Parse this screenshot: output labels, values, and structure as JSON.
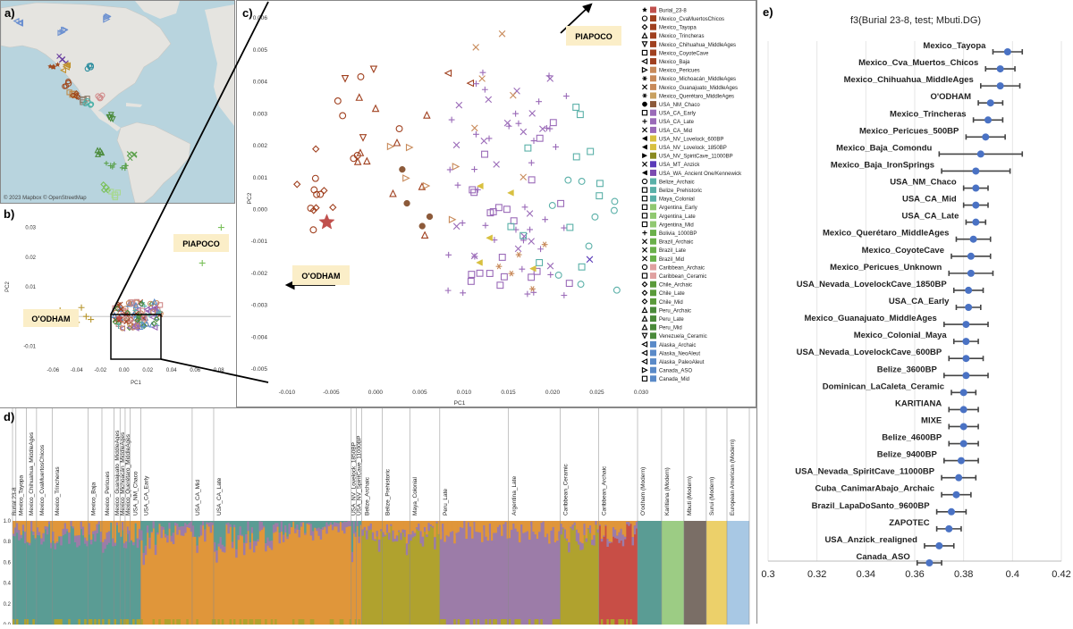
{
  "panels": {
    "a": "a)",
    "b": "b)",
    "c": "c)",
    "d": "d)",
    "e": "e)"
  },
  "map": {
    "attribution": "© 2023 Mapbox © OpenStreetMap",
    "colors": {
      "water": "#b8d4de",
      "land": "#e5e4e0"
    },
    "markers": [
      {
        "label": "Alaska",
        "lon": -152,
        "lat": 60,
        "color": "#6a8fd0",
        "shape": "tri-left"
      },
      {
        "label": "Canada",
        "lon": -110,
        "lat": 56,
        "color": "#6a8fd0",
        "shape": "tri-right"
      },
      {
        "label": "Canada",
        "lon": -70,
        "lat": 62,
        "color": "#6a8fd0",
        "shape": "tri-right"
      },
      {
        "label": "USA",
        "lon": -112,
        "lat": 40,
        "color": "#6a3fa0",
        "shape": "x"
      },
      {
        "label": "USA",
        "lon": -120,
        "lat": 36,
        "color": "#a04a1f",
        "shape": "star"
      },
      {
        "label": "USA",
        "lon": -108,
        "lat": 36,
        "color": "#c0902a",
        "shape": "tri-left"
      },
      {
        "label": "USA",
        "lon": -85,
        "lat": 36,
        "color": "#2a8c9e",
        "shape": "circle"
      },
      {
        "label": "Mexico",
        "lon": -106,
        "lat": 27,
        "color": "#a04a1f",
        "shape": "circle"
      },
      {
        "label": "Mexico",
        "lon": -102,
        "lat": 21,
        "color": "#c08a4a",
        "shape": "square"
      },
      {
        "label": "Mexico",
        "lon": -98,
        "lat": 20,
        "color": "#a04a1f",
        "shape": "diamond"
      },
      {
        "label": "Mexico",
        "lon": -92,
        "lat": 18,
        "color": "#8c7b6a",
        "shape": "square"
      },
      {
        "label": "Caribbean",
        "lon": -76,
        "lat": 19,
        "color": "#d08a8a",
        "shape": "circle"
      },
      {
        "label": "Belize",
        "lon": -88,
        "lat": 17,
        "color": "#4ab0a8",
        "shape": "circle"
      },
      {
        "label": "Venezuela",
        "lon": -66,
        "lat": 8,
        "color": "#4a8a3a",
        "shape": "tri-down"
      },
      {
        "label": "Peru",
        "lon": -76,
        "lat": -10,
        "color": "#4a8a3a",
        "shape": "triangle"
      },
      {
        "label": "Brazil",
        "lon": -44,
        "lat": -12,
        "color": "#5aa04a",
        "shape": "x"
      },
      {
        "label": "Brazil",
        "lon": -52,
        "lat": -18,
        "color": "#5aa04a",
        "shape": "plus"
      },
      {
        "label": "Bolivia",
        "lon": -66,
        "lat": -18,
        "color": "#5aa04a",
        "shape": "plus"
      },
      {
        "label": "Chile",
        "lon": -70,
        "lat": -30,
        "color": "#7ac05a",
        "shape": "diamond"
      },
      {
        "label": "Argentina",
        "lon": -62,
        "lat": -34,
        "color": "#a8d890",
        "shape": "square"
      }
    ]
  },
  "pca_small": {
    "xlabel": "PC1",
    "ylabel": "PC2",
    "xticks": [
      "-0.06",
      "-0.04",
      "-0.02",
      "0.00",
      "0.02",
      "0.04",
      "0.06",
      "0.08"
    ],
    "yticks": [
      "0.03",
      "0.02",
      "0.01",
      "0.00",
      "-0.01"
    ],
    "label_odham": "O'ODHAM",
    "label_piapoco": "PIAPOCO"
  },
  "pca_large": {
    "xlabel": "PC1",
    "ylabel": "PC2",
    "xticks": [
      "-0.010",
      "-0.005",
      "0.000",
      "0.005",
      "0.010",
      "0.015",
      "0.020",
      "0.025",
      "0.030"
    ],
    "yticks": [
      "0.006",
      "0.005",
      "0.004",
      "0.003",
      "0.002",
      "0.001",
      "0.000",
      "-0.001",
      "-0.002",
      "-0.003",
      "-0.004",
      "-0.005"
    ],
    "label_odham": "O'ODHAM",
    "label_piapoco": "PIAPOCO"
  },
  "legend": [
    {
      "shape": "star",
      "color": "#c0504d",
      "label": "Burial_23-8"
    },
    {
      "shape": "circle",
      "color": "#a0401f",
      "label": "Mexico_CvaMuertosChicos"
    },
    {
      "shape": "diamond",
      "color": "#a0401f",
      "label": "Mexico_Tayopa"
    },
    {
      "shape": "triangle",
      "color": "#a0401f",
      "label": "Mexico_Trincheras"
    },
    {
      "shape": "tri-down",
      "color": "#a0401f",
      "label": "Mexico_Chihuahua_MiddleAges"
    },
    {
      "shape": "square",
      "color": "#a0401f",
      "label": "Mexico_CoyoteCave"
    },
    {
      "shape": "tri-left",
      "color": "#a0401f",
      "label": "Mexico_Baja"
    },
    {
      "shape": "tri-right",
      "color": "#c88a5a",
      "label": "Mexico_Pericues"
    },
    {
      "shape": "star6",
      "color": "#c88a5a",
      "label": "Mexico_Michoacán_MiddleAges"
    },
    {
      "shape": "x",
      "color": "#c88a5a",
      "label": "Mexico_Guanajuato_MiddleAges"
    },
    {
      "shape": "star6",
      "color": "#c8a060",
      "label": "Mexico_Querétaro_MiddleAges"
    },
    {
      "shape": "dot",
      "color": "#8c5a3a",
      "label": "USA_NM_Chaco"
    },
    {
      "shape": "square",
      "color": "#9a6ab8",
      "label": "USA_CA_Early"
    },
    {
      "shape": "plus",
      "color": "#9a6ab8",
      "label": "USA_CA_Late"
    },
    {
      "shape": "x",
      "color": "#9a6ab8",
      "label": "USA_CA_Mid"
    },
    {
      "shape": "tri-left-fill",
      "color": "#d8c040",
      "label": "USA_NV_Lovelock_600BP"
    },
    {
      "shape": "tri-left-fill",
      "color": "#d8c040",
      "label": "USA_NV_Lovelock_1850BP"
    },
    {
      "shape": "tri-right-fill",
      "color": "#8a8a20",
      "label": "USA_NV_SpiritCave_11000BP"
    },
    {
      "shape": "x",
      "color": "#5a3ab8",
      "label": "USA_MT_Anzick"
    },
    {
      "shape": "tri-left-fill",
      "color": "#7a4ab0",
      "label": "USA_WA_Ancient One/Kennewick"
    },
    {
      "shape": "circle",
      "color": "#5ab0a8",
      "label": "Belize_Archaic"
    },
    {
      "shape": "square",
      "color": "#5ab0a8",
      "label": "Belize_Prehistoric"
    },
    {
      "shape": "square",
      "color": "#5ab0a8",
      "label": "Maya_Colonial"
    },
    {
      "shape": "square",
      "color": "#90c870",
      "label": "Argentina_Early"
    },
    {
      "shape": "square",
      "color": "#90c870",
      "label": "Argentina_Late"
    },
    {
      "shape": "square",
      "color": "#90c870",
      "label": "Argentina_Mid"
    },
    {
      "shape": "plus",
      "color": "#6ab04a",
      "label": "Bolivia_1000BP"
    },
    {
      "shape": "x",
      "color": "#6ab04a",
      "label": "Brazil_Archaic"
    },
    {
      "shape": "x",
      "color": "#6ab04a",
      "label": "Brazil_Late"
    },
    {
      "shape": "x",
      "color": "#6ab04a",
      "label": "Brazil_Mid"
    },
    {
      "shape": "circle",
      "color": "#e0a0a0",
      "label": "Caribbean_Archaic"
    },
    {
      "shape": "square",
      "color": "#e0a0a0",
      "label": "Caribbean_Ceramic"
    },
    {
      "shape": "diamond",
      "color": "#5a9a3a",
      "label": "Chile_Archaic"
    },
    {
      "shape": "diamond",
      "color": "#5a9a3a",
      "label": "Chile_Late"
    },
    {
      "shape": "diamond",
      "color": "#5a9a3a",
      "label": "Chile_Mid"
    },
    {
      "shape": "triangle",
      "color": "#4a8a3a",
      "label": "Peru_Archaic"
    },
    {
      "shape": "triangle",
      "color": "#4a8a3a",
      "label": "Peru_Late"
    },
    {
      "shape": "triangle",
      "color": "#4a8a3a",
      "label": "Peru_Mid"
    },
    {
      "shape": "tri-down",
      "color": "#4a8a3a",
      "label": "Venezuela_Ceramic"
    },
    {
      "shape": "tri-left",
      "color": "#5a8ac8",
      "label": "Alaska_Archaic"
    },
    {
      "shape": "tri-left",
      "color": "#5a8ac8",
      "label": "Alaska_NeoAleut"
    },
    {
      "shape": "tri-left",
      "color": "#5a8ac8",
      "label": "Alaska_PaleoAleut"
    },
    {
      "shape": "tri-right",
      "color": "#5a8ac8",
      "label": "Canada_ASO"
    },
    {
      "shape": "square",
      "color": "#5a8ac8",
      "label": "Canada_Mid"
    }
  ],
  "admixture": {
    "ytick_labels": [
      "1.0",
      "0.8",
      "0.6",
      "0.4",
      "0.2",
      "0.0"
    ],
    "colors": {
      "orange": "#e0963a",
      "teal": "#5a9c94",
      "purple": "#9c7ca8",
      "olive": "#b0a22e",
      "red": "#c84e46",
      "green": "#9ccc84",
      "brown": "#7a6e66",
      "yellow": "#ecd06a",
      "lightblue": "#a8c8e4"
    },
    "groups": [
      {
        "label": "Burial 23-8",
        "w": 0.4,
        "c": "teal"
      },
      {
        "label": "Mexico_Tayopa",
        "w": 1.2,
        "c": "teal"
      },
      {
        "label": "Mexico_Chihuahua_MiddleAges",
        "w": 1.2,
        "c": "teal"
      },
      {
        "label": "Mexico_CvaMuertosChicos",
        "w": 1.8,
        "c": "teal"
      },
      {
        "label": "Mexico_Trincheras",
        "w": 4.2,
        "c": "teal"
      },
      {
        "label": "Mexico_Baja",
        "w": 1.6,
        "c": "teal"
      },
      {
        "label": "Mexico_Pericues",
        "w": 1.4,
        "c": "teal"
      },
      {
        "label": "Mexico_Guanajuato_MiddleAges",
        "w": 0.7,
        "c": "teal"
      },
      {
        "label": "Mexico_Michoacán_MiddleAges",
        "w": 0.6,
        "c": "teal"
      },
      {
        "label": "Mexico_Querétaro_MiddleAges",
        "w": 0.6,
        "c": "teal"
      },
      {
        "label": "USA_NM_Chaco",
        "w": 1.2,
        "c": "teal"
      },
      {
        "label": "USA_CA_Early",
        "w": 6,
        "c": "orange"
      },
      {
        "label": "USA_CA_Mid",
        "w": 2.5,
        "c": "orange"
      },
      {
        "label": "USA_CA_Late",
        "w": 16,
        "c": "orange"
      },
      {
        "label": "USA_NV_Lovelock_1850BP",
        "w": 0.6,
        "c": "orange"
      },
      {
        "label": "USA_NV_SpiritCave_11000BP",
        "w": 0.6,
        "c": "orange"
      },
      {
        "label": "Belize_Archaic",
        "w": 2.4,
        "c": "olive"
      },
      {
        "label": "Belize_Prehistoric",
        "w": 3.2,
        "c": "olive"
      },
      {
        "label": "Maya_Colonial",
        "w": 3.5,
        "c": "olive"
      },
      {
        "label": "Peru_Late",
        "w": 8,
        "c": "purple"
      },
      {
        "label": "Argentina_Late",
        "w": 6,
        "c": "purple"
      },
      {
        "label": "Caribbean_Ceramic",
        "w": 4.5,
        "c": "olive"
      },
      {
        "label": "Caribbean_Archaic",
        "w": 4.5,
        "c": "red"
      },
      {
        "label": "O'odham (Modern)",
        "w": 2.8,
        "c": "teal"
      },
      {
        "label": "Karitiana (Modern)",
        "w": 2.6,
        "c": "green"
      },
      {
        "label": "Mbuti (Modern)",
        "w": 2.6,
        "c": "brown"
      },
      {
        "label": "Surui (Modern)",
        "w": 2.4,
        "c": "yellow"
      },
      {
        "label": "European American (Modern)",
        "w": 2.6,
        "c": "lightblue"
      }
    ]
  },
  "f3": {
    "title": "f3(Burial 23-8, test; Mbuti.DG)",
    "xlim": [
      0.3,
      0.42
    ],
    "xticks": [
      "0.3",
      "0.32",
      "0.34",
      "0.36",
      "0.38",
      "0.4",
      "0.42"
    ],
    "point_color": "#4a72c4",
    "rows": [
      {
        "label": "Mexico_Tayopa",
        "value": 0.398,
        "err": 0.006
      },
      {
        "label": "Mexico_Cva_Muertos_Chicos",
        "value": 0.395,
        "err": 0.006
      },
      {
        "label": "Mexico_Chihuahua_MiddleAges",
        "value": 0.395,
        "err": 0.008
      },
      {
        "label": "O'ODHAM",
        "value": 0.391,
        "err": 0.005
      },
      {
        "label": "Mexico_Trincheras",
        "value": 0.39,
        "err": 0.006
      },
      {
        "label": "Mexico_Pericues_500BP",
        "value": 0.389,
        "err": 0.008
      },
      {
        "label": "Mexico_Baja_Comondu",
        "value": 0.387,
        "err": 0.017
      },
      {
        "label": "Mexico_Baja_IronSprings",
        "value": 0.385,
        "err": 0.014
      },
      {
        "label": "USA_NM_Chaco",
        "value": 0.385,
        "err": 0.005
      },
      {
        "label": "USA_CA_Mid",
        "value": 0.385,
        "err": 0.005
      },
      {
        "label": "USA_CA_Late",
        "value": 0.385,
        "err": 0.004
      },
      {
        "label": "Mexico_Querétaro_MiddleAges",
        "value": 0.384,
        "err": 0.007
      },
      {
        "label": "Mexico_CoyoteCave",
        "value": 0.383,
        "err": 0.008
      },
      {
        "label": "Mexico_Pericues_Unknown",
        "value": 0.383,
        "err": 0.009
      },
      {
        "label": "USA_Nevada_LovelockCave_1850BP",
        "value": 0.382,
        "err": 0.006
      },
      {
        "label": "USA_CA_Early",
        "value": 0.382,
        "err": 0.005
      },
      {
        "label": "Mexico_Guanajuato_MiddleAges",
        "value": 0.381,
        "err": 0.009
      },
      {
        "label": "Mexico_Colonial_Maya",
        "value": 0.381,
        "err": 0.005
      },
      {
        "label": "USA_Nevada_LovelockCave_600BP",
        "value": 0.381,
        "err": 0.007
      },
      {
        "label": "Belize_3600BP",
        "value": 0.381,
        "err": 0.009
      },
      {
        "label": "Dominican_LaCaleta_Ceramic",
        "value": 0.38,
        "err": 0.005
      },
      {
        "label": "KARITIANA",
        "value": 0.38,
        "err": 0.006
      },
      {
        "label": "MIXE",
        "value": 0.38,
        "err": 0.006
      },
      {
        "label": "Belize_4600BP",
        "value": 0.38,
        "err": 0.006
      },
      {
        "label": "Belize_9400BP",
        "value": 0.379,
        "err": 0.007
      },
      {
        "label": "USA_Nevada_SpiritCave_11000BP",
        "value": 0.378,
        "err": 0.007
      },
      {
        "label": "Cuba_CanimarAbajo_Archaic",
        "value": 0.377,
        "err": 0.006
      },
      {
        "label": "Brazil_LapaDoSanto_9600BP",
        "value": 0.375,
        "err": 0.006
      },
      {
        "label": "ZAPOTEC",
        "value": 0.374,
        "err": 0.005
      },
      {
        "label": "USA_Anzick_realigned",
        "value": 0.37,
        "err": 0.006
      },
      {
        "label": "Canada_ASO",
        "value": 0.366,
        "err": 0.005
      }
    ]
  }
}
